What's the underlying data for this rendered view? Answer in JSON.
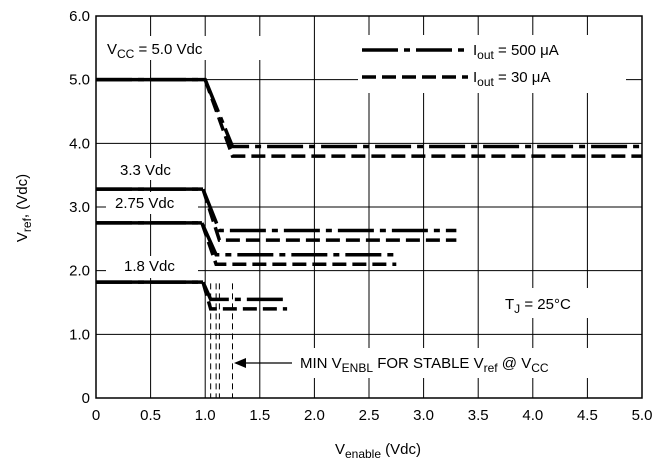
{
  "chart_data": {
    "type": "line",
    "title": "",
    "xlabel": {
      "main": "V",
      "sub": "enable",
      "rest": " (Vdc)"
    },
    "ylabel": {
      "main": "V",
      "sub": "ref",
      "rest": ", (Vdc)"
    },
    "xlim": [
      0,
      5.0
    ],
    "ylim": [
      0,
      6.0
    ],
    "x_ticks": [
      "0",
      "0.5",
      "1.0",
      "1.5",
      "2.0",
      "2.5",
      "3.0",
      "3.5",
      "4.0",
      "4.5",
      "5.0"
    ],
    "y_ticks": [
      "0",
      "1.0",
      "2.0",
      "3.0",
      "4.0",
      "5.0",
      "6.0"
    ],
    "grid": true,
    "legend": {
      "placement": "top-right",
      "entries": [
        {
          "main": "I",
          "sub": "out",
          "rest": " = 500 μA",
          "style": "dash-dot"
        },
        {
          "main": "I",
          "sub": "out",
          "rest": " = 30 μA",
          "style": "dashed"
        }
      ]
    },
    "series": [
      {
        "vcc": 5.0,
        "load": "500uA",
        "style": "dash-dot",
        "x": [
          0,
          1.0,
          1.25,
          5.0
        ],
        "y": [
          5.0,
          5.0,
          3.95,
          3.95
        ]
      },
      {
        "vcc": 5.0,
        "load": "30uA",
        "style": "dashed",
        "x": [
          1.0,
          1.25,
          5.0
        ],
        "y": [
          5.0,
          3.8,
          3.8
        ]
      },
      {
        "vcc": 3.3,
        "load": "500uA",
        "style": "dash-dot",
        "x": [
          0,
          0.98,
          1.13,
          3.3
        ],
        "y": [
          3.28,
          3.28,
          2.63,
          2.63
        ]
      },
      {
        "vcc": 3.3,
        "load": "30uA",
        "style": "dashed",
        "x": [
          0.98,
          1.13,
          3.3
        ],
        "y": [
          3.28,
          2.48,
          2.48
        ]
      },
      {
        "vcc": 2.75,
        "load": "500uA",
        "style": "dash-dot",
        "x": [
          0,
          0.97,
          1.1,
          2.75
        ],
        "y": [
          2.75,
          2.75,
          2.25,
          2.25
        ]
      },
      {
        "vcc": 2.75,
        "load": "30uA",
        "style": "dashed",
        "x": [
          0.97,
          1.1,
          2.75
        ],
        "y": [
          2.75,
          2.1,
          2.1
        ]
      },
      {
        "vcc": 1.8,
        "load": "500uA",
        "style": "dash-dot",
        "x": [
          0,
          0.98,
          1.05,
          1.75
        ],
        "y": [
          1.82,
          1.82,
          1.55,
          1.55
        ]
      },
      {
        "vcc": 1.8,
        "load": "30uA",
        "style": "dashed",
        "x": [
          0.98,
          1.05,
          1.75
        ],
        "y": [
          1.82,
          1.4,
          1.4
        ]
      }
    ],
    "min_enable_markers": [
      1.05,
      1.1,
      1.13,
      1.25
    ],
    "annotations": {
      "vcc50": {
        "main": "V",
        "sub": "CC",
        "rest": " = 5.0 Vdc"
      },
      "vcc33": "3.3 Vdc",
      "vcc275": "2.75 Vdc",
      "vcc18": "1.8 Vdc",
      "tj": {
        "main": "T",
        "sub": "J",
        "rest": " = 25°C"
      },
      "min_enbl": {
        "parts": [
          "MIN V",
          "ENBL",
          " FOR STABLE V",
          "ref",
          " @ V",
          "CC"
        ]
      }
    }
  }
}
